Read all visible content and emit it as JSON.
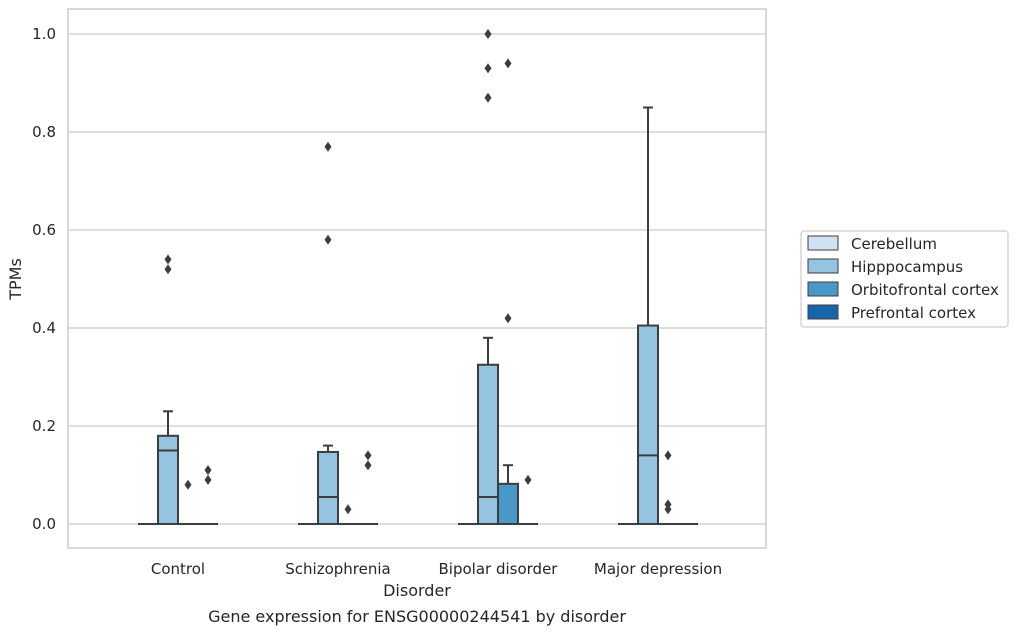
{
  "chart_data": {
    "type": "box",
    "title": "",
    "caption": "Gene expression for ENSG00000244541 by disorder",
    "xlabel": "Disorder",
    "ylabel": "TPMs",
    "ylim": [
      -0.05,
      1.05
    ],
    "yticks": [
      0.0,
      0.2,
      0.4,
      0.6,
      0.8,
      1.0
    ],
    "ytick_labels": [
      "0.0",
      "0.2",
      "0.4",
      "0.6",
      "0.8",
      "1.0"
    ],
    "grid": "horizontal",
    "legend_position": "right",
    "categories": [
      "Control",
      "Schizophrenia",
      "Bipolar disorder",
      "Major depression"
    ],
    "series": [
      {
        "name": "Cerebellum",
        "color": "#d0e1f2",
        "boxes": [
          {
            "q1": 0,
            "median": 0,
            "q3": 0,
            "whislo": 0,
            "whishi": 0,
            "fliers": []
          },
          {
            "q1": 0,
            "median": 0,
            "q3": 0,
            "whislo": 0,
            "whishi": 0,
            "fliers": []
          },
          {
            "q1": 0,
            "median": 0,
            "q3": 0,
            "whislo": 0,
            "whishi": 0,
            "fliers": []
          },
          {
            "q1": 0,
            "median": 0,
            "q3": 0,
            "whislo": 0,
            "whishi": 0,
            "fliers": []
          }
        ]
      },
      {
        "name": "Hipppocampus",
        "color": "#94c4df",
        "boxes": [
          {
            "q1": 0,
            "median": 0.15,
            "q3": 0.18,
            "whislo": 0,
            "whishi": 0.23,
            "fliers": [
              0.52,
              0.54
            ]
          },
          {
            "q1": 0,
            "median": 0.055,
            "q3": 0.147,
            "whislo": 0,
            "whishi": 0.16,
            "fliers": [
              0.58,
              0.77
            ]
          },
          {
            "q1": 0,
            "median": 0.055,
            "q3": 0.325,
            "whislo": 0,
            "whishi": 0.38,
            "fliers": [
              0.87,
              0.93,
              1.0
            ]
          },
          {
            "q1": 0,
            "median": 0.14,
            "q3": 0.405,
            "whislo": 0,
            "whishi": 0.85,
            "fliers": []
          }
        ]
      },
      {
        "name": "Orbitofrontal cortex",
        "color": "#4a98c9",
        "boxes": [
          {
            "q1": 0,
            "median": 0,
            "q3": 0,
            "whislo": 0,
            "whishi": 0,
            "fliers": [
              0.08
            ]
          },
          {
            "q1": 0,
            "median": 0,
            "q3": 0,
            "whislo": 0,
            "whishi": 0,
            "fliers": [
              0.03
            ]
          },
          {
            "q1": 0,
            "median": 0,
            "q3": 0.082,
            "whislo": 0,
            "whishi": 0.12,
            "fliers": [
              0.42,
              0.94
            ]
          },
          {
            "q1": 0,
            "median": 0,
            "q3": 0,
            "whislo": 0,
            "whishi": 0,
            "fliers": [
              0.03,
              0.04,
              0.14
            ]
          }
        ]
      },
      {
        "name": "Prefrontal cortex",
        "color": "#1764ab",
        "boxes": [
          {
            "q1": 0,
            "median": 0,
            "q3": 0,
            "whislo": 0,
            "whishi": 0,
            "fliers": [
              0.09,
              0.11
            ]
          },
          {
            "q1": 0,
            "median": 0,
            "q3": 0,
            "whislo": 0,
            "whishi": 0,
            "fliers": [
              0.12,
              0.14
            ]
          },
          {
            "q1": 0,
            "median": 0,
            "q3": 0,
            "whislo": 0,
            "whishi": 0,
            "fliers": [
              0.09
            ]
          },
          {
            "q1": 0,
            "median": 0,
            "q3": 0,
            "whislo": 0,
            "whishi": 0,
            "fliers": []
          }
        ]
      }
    ],
    "colors": {
      "grid": "#cccccc",
      "frame": "#cccccc",
      "line": "#3d3d3d",
      "text": "#262626"
    }
  }
}
